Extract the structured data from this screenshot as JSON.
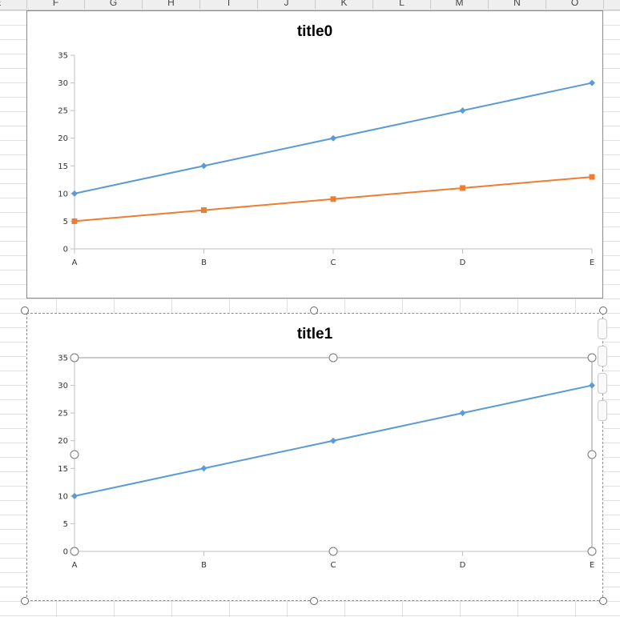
{
  "spreadsheet": {
    "column_headers": [
      "E",
      "F",
      "G",
      "H",
      "I",
      "J",
      "K",
      "L",
      "M",
      "N",
      "O"
    ]
  },
  "chart_data": [
    {
      "type": "line",
      "title": "title0",
      "categories": [
        "A",
        "B",
        "C",
        "D",
        "E"
      ],
      "series": [
        {
          "values": [
            10,
            15,
            20,
            25,
            30
          ],
          "color": "#5b9bd5",
          "marker": "diamond"
        },
        {
          "values": [
            5,
            7,
            9,
            11,
            13
          ],
          "color": "#ed7d31",
          "marker": "square"
        }
      ],
      "xlabel": "",
      "ylabel": "",
      "ylim": [
        0,
        35
      ],
      "yticks": [
        0,
        5,
        10,
        15,
        20,
        25,
        30,
        35
      ],
      "grid": false,
      "legend": "none",
      "selected": false
    },
    {
      "type": "line",
      "title": "title1",
      "categories": [
        "A",
        "B",
        "C",
        "D",
        "E"
      ],
      "series": [
        {
          "values": [
            10,
            15,
            20,
            25,
            30
          ],
          "color": "#5b9bd5",
          "marker": "diamond"
        }
      ],
      "xlabel": "",
      "ylabel": "",
      "ylim": [
        0,
        35
      ],
      "yticks": [
        0,
        5,
        10,
        15,
        20,
        25,
        30,
        35
      ],
      "grid": false,
      "legend": "none",
      "selected": true
    }
  ]
}
